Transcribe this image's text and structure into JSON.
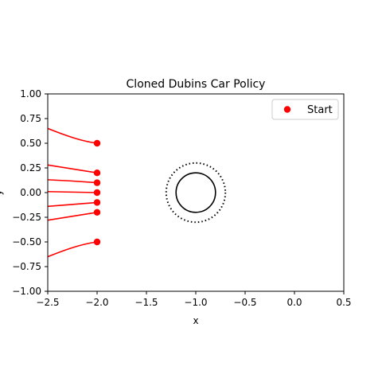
{
  "chart_data": {
    "type": "line",
    "title": "Cloned Dubins Car Policy",
    "xlabel": "x",
    "ylabel": "y",
    "xlim": [
      -2.5,
      0.5
    ],
    "ylim": [
      -1.0,
      1.0
    ],
    "x_ticks": [
      -2.5,
      -2.0,
      -1.5,
      -1.0,
      -0.5,
      0.0,
      0.5
    ],
    "x_tick_labels": [
      "−2.5",
      "−2.0",
      "−1.5",
      "−1.0",
      "−0.5",
      "0.0",
      "0.5"
    ],
    "y_ticks": [
      1.0,
      0.75,
      0.5,
      0.25,
      0.0,
      -0.25,
      -0.5,
      -0.75,
      -1.0
    ],
    "y_tick_labels": [
      "1.00",
      "0.75",
      "0.50",
      "0.25",
      "0.00",
      "−0.25",
      "−0.50",
      "−0.75",
      "−1.00"
    ],
    "legend": {
      "position": "top-right",
      "entries": [
        {
          "label": "Start",
          "color": "#ff0000",
          "marker": "circle"
        }
      ]
    },
    "grid": false,
    "trajectory_color": "#ff0000",
    "start_points": [
      {
        "x": -2.0,
        "y": 0.5
      },
      {
        "x": -2.0,
        "y": 0.2
      },
      {
        "x": -2.0,
        "y": 0.1
      },
      {
        "x": -2.0,
        "y": 0.0
      },
      {
        "x": -2.0,
        "y": -0.1
      },
      {
        "x": -2.0,
        "y": -0.2
      },
      {
        "x": -2.0,
        "y": -0.5
      }
    ],
    "series": [
      {
        "points": [
          [
            -2.0,
            0.5
          ],
          [
            -2.15,
            0.52
          ],
          [
            -2.3,
            0.57
          ],
          [
            -2.5,
            0.65
          ]
        ]
      },
      {
        "points": [
          [
            -2.0,
            0.2
          ],
          [
            -2.25,
            0.24
          ],
          [
            -2.5,
            0.28
          ]
        ]
      },
      {
        "points": [
          [
            -2.0,
            0.1
          ],
          [
            -2.25,
            0.12
          ],
          [
            -2.5,
            0.13
          ]
        ]
      },
      {
        "points": [
          [
            -2.0,
            0.0
          ],
          [
            -2.25,
            0.005
          ],
          [
            -2.5,
            0.01
          ]
        ]
      },
      {
        "points": [
          [
            -2.0,
            -0.1
          ],
          [
            -2.25,
            -0.12
          ],
          [
            -2.5,
            -0.14
          ]
        ]
      },
      {
        "points": [
          [
            -2.0,
            -0.2
          ],
          [
            -2.25,
            -0.24
          ],
          [
            -2.5,
            -0.28
          ]
        ]
      },
      {
        "points": [
          [
            -2.0,
            -0.5
          ],
          [
            -2.15,
            -0.52
          ],
          [
            -2.3,
            -0.57
          ],
          [
            -2.5,
            -0.65
          ]
        ]
      }
    ],
    "obstacle": {
      "center": [
        -1.0,
        0.0
      ],
      "radius": 0.2,
      "color": "#000000"
    },
    "safety_boundary": {
      "center": [
        -1.0,
        0.0
      ],
      "radius": 0.3,
      "style": "dotted",
      "color": "#000000"
    }
  }
}
